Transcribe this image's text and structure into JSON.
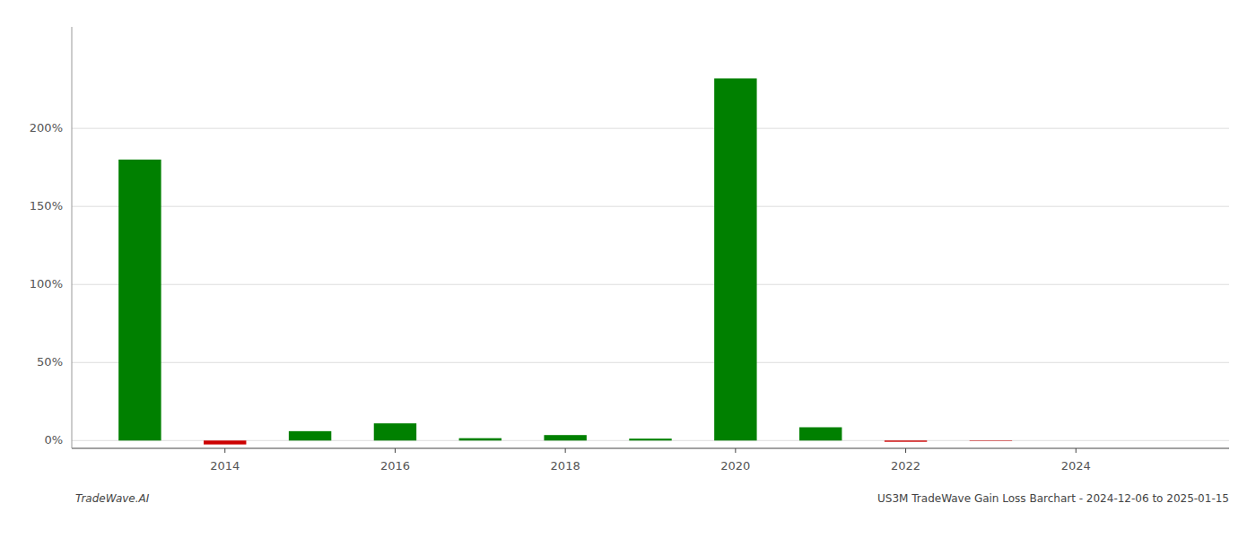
{
  "chart_data": {
    "type": "bar",
    "title": "US3M TradeWave Gain Loss Barchart - 2024-12-06 to 2025-01-15",
    "annotations": [
      "TradeWave.AI"
    ],
    "x": [
      2013,
      2014,
      2015,
      2016,
      2017,
      2018,
      2019,
      2020,
      2021,
      2022,
      2023,
      2024
    ],
    "values": [
      1.8,
      -0.025,
      0.06,
      0.11,
      0.015,
      0.035,
      0.012,
      2.32,
      0.085,
      -0.008,
      -0.003,
      0.0
    ],
    "colors": [
      "#008000",
      "#cc0000",
      "#008000",
      "#008000",
      "#008000",
      "#008000",
      "#008000",
      "#008000",
      "#008000",
      "#cc0000",
      "#cc0000",
      "#cc0000"
    ],
    "xlim": [
      2012.2,
      2025.8
    ],
    "xticks": [
      2014,
      2016,
      2018,
      2020,
      2022,
      2024
    ],
    "ylim": [
      -0.05,
      2.65
    ],
    "yticks": [
      {
        "value": 0.0,
        "label": "0%"
      },
      {
        "value": 0.5,
        "label": "50%"
      },
      {
        "value": 1.0,
        "label": "100%"
      },
      {
        "value": 1.5,
        "label": "150%"
      },
      {
        "value": 2.0,
        "label": "200%"
      }
    ],
    "grid": true
  }
}
